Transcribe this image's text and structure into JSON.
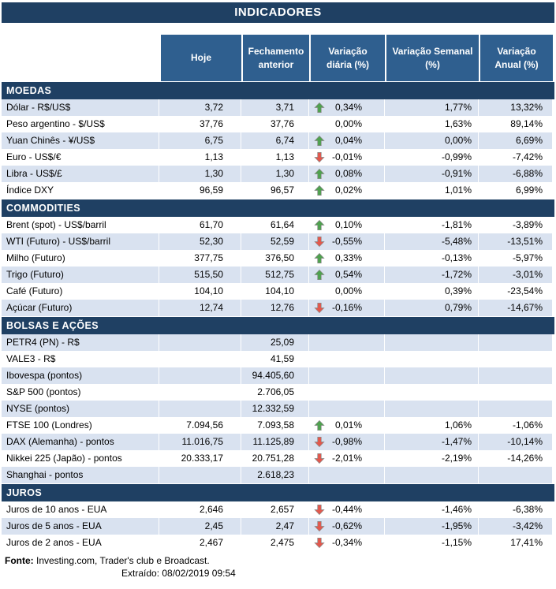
{
  "title": "INDICADORES",
  "columns": {
    "hoje": "Hoje",
    "fechamento": "Fechamento anterior",
    "diaria": "Variação diária (%)",
    "semanal": "Variação Semanal (%)",
    "anual": "Variação Anual (%)"
  },
  "colors": {
    "navy": "#1F4063",
    "header-blue": "#2F5F8F",
    "row-shade": "#D9E2F0",
    "arrow-up": "#4FA14F",
    "arrow-down": "#E2584D"
  },
  "sections": [
    {
      "name": "MOEDAS",
      "rows": [
        {
          "label": "Dólar - R$/US$",
          "hoje": "3,72",
          "fechamento": "3,71",
          "arrow": "up",
          "diaria": "0,34%",
          "semanal": "1,77%",
          "anual": "13,32%",
          "shaded": true
        },
        {
          "label": "Peso argentino - $/US$",
          "hoje": "37,76",
          "fechamento": "37,76",
          "arrow": "",
          "diaria": "0,00%",
          "semanal": "1,63%",
          "anual": "89,14%",
          "shaded": false
        },
        {
          "label": "Yuan Chinês - ¥/US$",
          "hoje": "6,75",
          "fechamento": "6,74",
          "arrow": "up",
          "diaria": "0,04%",
          "semanal": "0,00%",
          "anual": "6,69%",
          "shaded": true
        },
        {
          "label": "Euro - US$/€",
          "hoje": "1,13",
          "fechamento": "1,13",
          "arrow": "down",
          "diaria": "-0,01%",
          "semanal": "-0,99%",
          "anual": "-7,42%",
          "shaded": false
        },
        {
          "label": "Libra - US$/£",
          "hoje": "1,30",
          "fechamento": "1,30",
          "arrow": "up",
          "diaria": "0,08%",
          "semanal": "-0,91%",
          "anual": "-6,88%",
          "shaded": true
        },
        {
          "label": "Índice DXY",
          "hoje": "96,59",
          "fechamento": "96,57",
          "arrow": "up",
          "diaria": "0,02%",
          "semanal": "1,01%",
          "anual": "6,99%",
          "shaded": false
        }
      ]
    },
    {
      "name": "COMMODITIES",
      "rows": [
        {
          "label": "Brent (spot) - US$/barril",
          "hoje": "61,70",
          "fechamento": "61,64",
          "arrow": "up",
          "diaria": "0,10%",
          "semanal": "-1,81%",
          "anual": "-3,89%",
          "shaded": false
        },
        {
          "label": "WTI (Futuro) - US$/barril",
          "hoje": "52,30",
          "fechamento": "52,59",
          "arrow": "down",
          "diaria": "-0,55%",
          "semanal": "-5,48%",
          "anual": "-13,51%",
          "shaded": true
        },
        {
          "label": "Milho (Futuro)",
          "hoje": "377,75",
          "fechamento": "376,50",
          "arrow": "up",
          "diaria": "0,33%",
          "semanal": "-0,13%",
          "anual": "-5,97%",
          "shaded": false
        },
        {
          "label": "Trigo (Futuro)",
          "hoje": "515,50",
          "fechamento": "512,75",
          "arrow": "up",
          "diaria": "0,54%",
          "semanal": "-1,72%",
          "anual": "-3,01%",
          "shaded": true
        },
        {
          "label": "Café (Futuro)",
          "hoje": "104,10",
          "fechamento": "104,10",
          "arrow": "",
          "diaria": "0,00%",
          "semanal": "0,39%",
          "anual": "-23,54%",
          "shaded": false
        },
        {
          "label": "Açúcar (Futuro)",
          "hoje": "12,74",
          "fechamento": "12,76",
          "arrow": "down",
          "diaria": "-0,16%",
          "semanal": "0,79%",
          "anual": "-14,67%",
          "shaded": true
        }
      ]
    },
    {
      "name": "BOLSAS E AÇÕES",
      "rows": [
        {
          "label": "PETR4 (PN) - R$",
          "hoje": "",
          "fechamento": "25,09",
          "arrow": "",
          "diaria": "",
          "semanal": "",
          "anual": "",
          "shaded": true
        },
        {
          "label": "VALE3 - R$",
          "hoje": "",
          "fechamento": "41,59",
          "arrow": "",
          "diaria": "",
          "semanal": "",
          "anual": "",
          "shaded": false
        },
        {
          "label": "Ibovespa (pontos)",
          "hoje": "",
          "fechamento": "94.405,60",
          "arrow": "",
          "diaria": "",
          "semanal": "",
          "anual": "",
          "shaded": true
        },
        {
          "label": "S&P 500 (pontos)",
          "hoje": "",
          "fechamento": "2.706,05",
          "arrow": "",
          "diaria": "",
          "semanal": "",
          "anual": "",
          "shaded": false
        },
        {
          "label": "NYSE (pontos)",
          "hoje": "",
          "fechamento": "12.332,59",
          "arrow": "",
          "diaria": "",
          "semanal": "",
          "anual": "",
          "shaded": true
        },
        {
          "label": "FTSE 100 (Londres)",
          "hoje": "7.094,56",
          "fechamento": "7.093,58",
          "arrow": "up",
          "diaria": "0,01%",
          "semanal": "1,06%",
          "anual": "-1,06%",
          "shaded": false
        },
        {
          "label": "DAX (Alemanha) - pontos",
          "hoje": "11.016,75",
          "fechamento": "11.125,89",
          "arrow": "down",
          "diaria": "-0,98%",
          "semanal": "-1,47%",
          "anual": "-10,14%",
          "shaded": true
        },
        {
          "label": "Nikkei 225 (Japão) - pontos",
          "hoje": "20.333,17",
          "fechamento": "20.751,28",
          "arrow": "down",
          "diaria": "-2,01%",
          "semanal": "-2,19%",
          "anual": "-14,26%",
          "shaded": false
        },
        {
          "label": "Shanghai - pontos",
          "hoje": "",
          "fechamento": "2.618,23",
          "arrow": "",
          "diaria": "",
          "semanal": "",
          "anual": "",
          "shaded": true
        }
      ]
    },
    {
      "name": "JUROS",
      "rows": [
        {
          "label": "Juros de 10 anos - EUA",
          "hoje": "2,646",
          "fechamento": "2,657",
          "arrow": "down",
          "diaria": "-0,44%",
          "semanal": "-1,46%",
          "anual": "-6,38%",
          "shaded": false
        },
        {
          "label": "Juros de 5 anos - EUA",
          "hoje": "2,45",
          "fechamento": "2,47",
          "arrow": "down",
          "diaria": "-0,62%",
          "semanal": "-1,95%",
          "anual": "-3,42%",
          "shaded": true
        },
        {
          "label": "Juros de 2 anos - EUA",
          "hoje": "2,467",
          "fechamento": "2,475",
          "arrow": "down",
          "diaria": "-0,34%",
          "semanal": "-1,15%",
          "anual": "17,41%",
          "shaded": false
        }
      ]
    }
  ],
  "footer": {
    "fonte_label": "Fonte:",
    "fonte_text": "Investing.com, Trader's club e Broadcast.",
    "extraido_label": "Extraído:",
    "extraido_value": "08/02/2019 09:54"
  }
}
